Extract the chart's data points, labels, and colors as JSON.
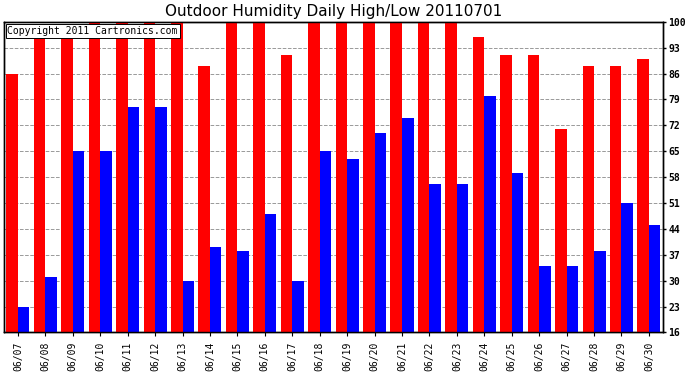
{
  "title": "Outdoor Humidity Daily High/Low 20110701",
  "copyright_text": "Copyright 2011 Cartronics.com",
  "categories": [
    "06/07",
    "06/08",
    "06/09",
    "06/10",
    "06/11",
    "06/12",
    "06/13",
    "06/14",
    "06/15",
    "06/16",
    "06/17",
    "06/18",
    "06/19",
    "06/20",
    "06/21",
    "06/22",
    "06/23",
    "06/24",
    "06/25",
    "06/26",
    "06/27",
    "06/28",
    "06/29",
    "06/30"
  ],
  "highs": [
    86,
    98,
    98,
    100,
    100,
    100,
    100,
    88,
    100,
    100,
    91,
    100,
    100,
    100,
    100,
    100,
    100,
    96,
    91,
    91,
    71,
    88,
    88,
    90
  ],
  "lows": [
    23,
    31,
    65,
    65,
    77,
    77,
    30,
    39,
    38,
    48,
    30,
    65,
    63,
    70,
    74,
    56,
    56,
    80,
    59,
    34,
    34,
    38,
    51,
    45
  ],
  "high_color": "#FF0000",
  "low_color": "#0000FF",
  "bg_color": "#FFFFFF",
  "grid_color": "#999999",
  "yticks": [
    16,
    23,
    30,
    37,
    44,
    51,
    58,
    65,
    72,
    79,
    86,
    93,
    100
  ],
  "ymin": 16,
  "ymax": 100,
  "bar_width": 0.42,
  "title_fontsize": 11,
  "tick_fontsize": 7,
  "copyright_fontsize": 7,
  "figwidth": 6.9,
  "figheight": 3.75,
  "dpi": 100
}
